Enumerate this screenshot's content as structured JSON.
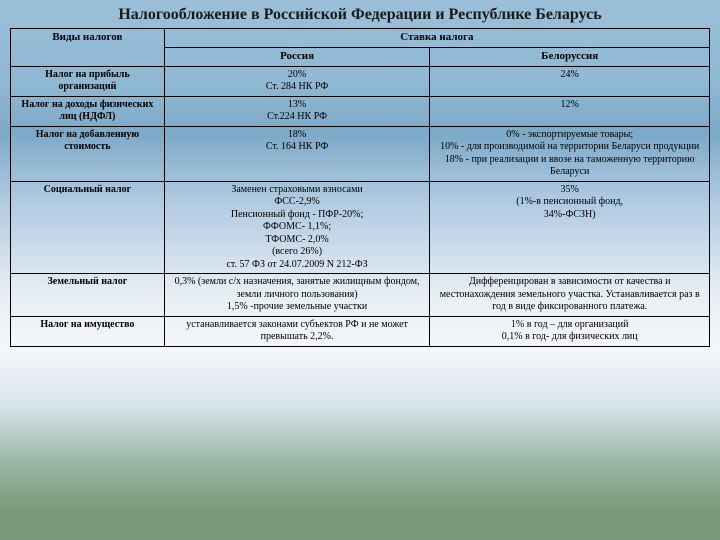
{
  "title": "Налогообложение в Российской Федерации и Республике Беларусь",
  "headers": {
    "taxType": "Виды налогов",
    "rate": "Ставка налога",
    "russia": "Россия",
    "belarus": "Белоруссия"
  },
  "rows": [
    {
      "tax": "Налог на прибыль организаций",
      "ru": "20%\nСт. 284 НК РФ",
      "by": "24%"
    },
    {
      "tax": "Налог на доходы физических лиц (НДФЛ)",
      "ru": "13%\nСт.224 НК РФ",
      "by": "12%"
    },
    {
      "tax": "Налог на добавленную стоимость",
      "ru": "18%\nСт. 164 НК РФ",
      "by": "0% - экспортируемые товары;\n10% - для производимой на территории Беларуси продукции\n18% - при реализации и ввозе на таможенную территорию Беларуси"
    },
    {
      "tax": "Социальный налог",
      "ru": "Заменен страховыми взносами\nФСС-2,9%\nПенсионный фонд - ПФР-20%;\nФФОМС- 1,1%;\nТФОМС- 2,0%\n(всего 26%)\nст. 57 ФЗ от 24.07.2009 N 212-ФЗ",
      "by": "35%\n(1%-в пенсионный фонд,\n34%-ФСЗН)"
    },
    {
      "tax": "Земельный налог",
      "ru": "0,3% (земли с/х назначения, занятые жилищным фондом, земли личного пользования)\n1,5% -прочие земельные участки",
      "by": "Дифференцирован в зависимости от качества и местонахождения земельного участка. Устанавливается раз в год в виде фиксированного платежа."
    },
    {
      "tax": "Налог на имущество",
      "ru": "устанавливается законами субъектов РФ и не может превышать 2,2%.",
      "by": "1% в год – для организаций\n0,1% в год- для физических лиц"
    }
  ],
  "style": {
    "title_fontsize": 16,
    "header_fontsize": 11,
    "cell_fontsize": 10,
    "border_color": "#000000",
    "col_widths_pct": [
      22,
      38,
      40
    ],
    "bg_gradient": [
      "#9bbfd9",
      "#8fb8d3",
      "#7da9c8",
      "#a8c5dd",
      "#e8eff5",
      "#f5f7f9",
      "#d8e4ee",
      "#9db8a8",
      "#7a9878"
    ]
  }
}
